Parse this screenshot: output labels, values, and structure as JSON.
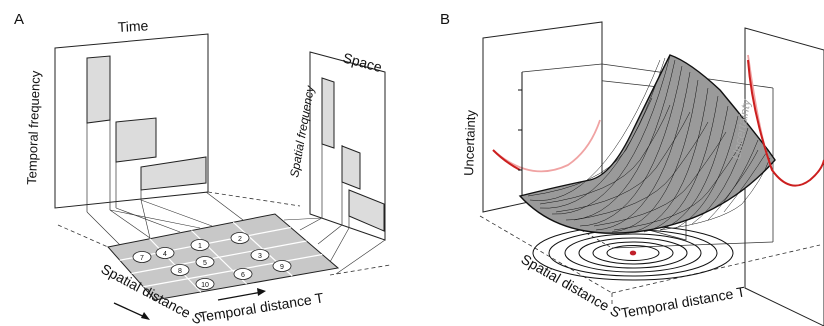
{
  "panels": {
    "a": {
      "letter": "A",
      "time_title": "Time",
      "space_title": "Space",
      "temporal_frequency": "Temporal frequency",
      "spatial_frequency": "Spatial frequency",
      "spatial_distance": "Spatial distance S",
      "temporal_distance": "Temporal distance T",
      "circle_numbers": [
        "1",
        "2",
        "3",
        "4",
        "5",
        "6",
        "7",
        "8",
        "9",
        "10"
      ]
    },
    "b": {
      "letter": "B",
      "uncertainty_front": "Uncertainty",
      "uncertainty_back": "Uncertainty",
      "spatial_distance": "Spatial distance S",
      "temporal_distance": "Temporal distance T"
    }
  },
  "colors": {
    "panel_fill": "#ffffff",
    "box_fill": "#dcdcdc",
    "grid_fill": "#c8c8c8",
    "curve_dark": "#cc1f1f",
    "curve_light": "#f0a3a3",
    "minimum_dot": "#c0202a",
    "text": "#111111",
    "text_muted": "#a8a8a8"
  }
}
